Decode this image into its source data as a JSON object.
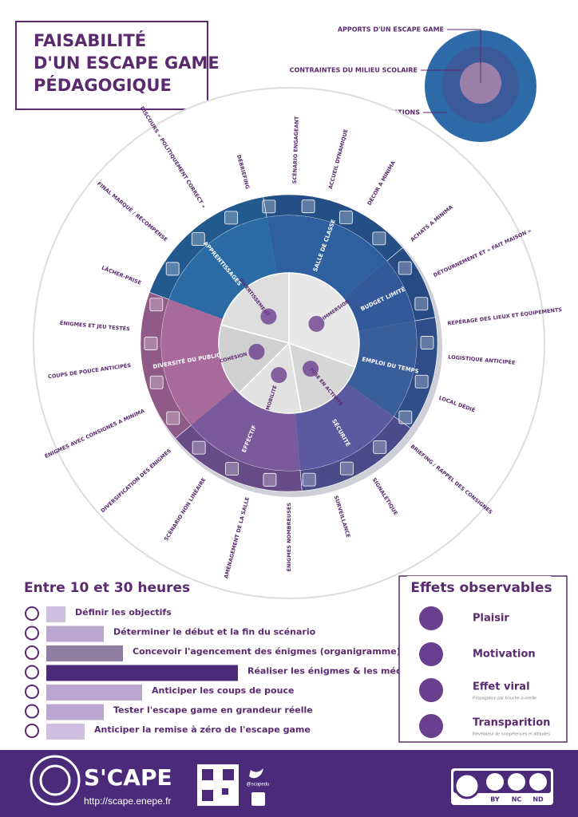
{
  "header": {
    "title": [
      "FAISABILITÉ",
      "D'UN ESCAPE GAME",
      "PÉDAGOGIQUE"
    ]
  },
  "legend": [
    "APPORTS D'UN ESCAPE GAME",
    "CONTRAINTES DU MILIEU SCOLAIRE",
    "RECOMMANDATIONS"
  ],
  "wheel": {
    "inner": [
      "DIVERTISSEMENT",
      "IMMERSION",
      "MISE EN ACTIVITÉ",
      "MOBILITÉ",
      "COHÉSION"
    ],
    "middle": [
      "APPRENTISSAGES",
      "SALLE DE CLASSE",
      "BUDGET LIMITÉ",
      "EMPLOI DU TEMPS",
      "SÉCURITÉ",
      "EFFECTIF",
      "DIVERSITÉ DU PUBLIC"
    ],
    "outer": [
      "SCÉNARIO ENGAGEANT",
      "ACCUEIL DYNAMIQUE",
      "DÉCOR A MINIMA",
      "ACHATS A MINIMA",
      "DÉTOURNEMENT ET « FAIT MAISON »",
      "REPÉRAGE DES LIEUX ET ÉQUIPEMENTS",
      "LOGISTIQUE ANTICIPÉE",
      "LOCAL DÉDIÉ",
      "BRIEFING / RAPPEL DES CONSIGNES",
      "SIGNALÉTIQUE",
      "SURVEILLANCE",
      "ÉNIGMES NOMBREUSES",
      "AMÉNAGEMENT DE LA SALLE",
      "SCÉNARIO NON LINÉAIRE",
      "DIVERSIFICATION DES ÉNIGMES",
      "ÉNIGMES AVEC CONSIGNES A MINIMA",
      "COUPS DE POUCE ANTICIPÉS",
      "ÉNIGMES ET JEU TESTÉS",
      "LÂCHER-PRISE",
      "FINAL MARQUÉ / RÉCOMPENSE",
      "DISCOURS « POLITIQUEMENT CORRECT »",
      "DÉBRIEFING"
    ]
  },
  "hours": {
    "title": "Entre 10 et 30 heures",
    "tasks": [
      {
        "label": "Définir les objectifs",
        "value": 1
      },
      {
        "label": "Déterminer le début et la fin du scénario",
        "value": 3
      },
      {
        "label": "Concevoir l'agencement des énigmes (organigramme)",
        "value": 4
      },
      {
        "label": "Réaliser les énigmes & les médias",
        "value": 10
      },
      {
        "label": "Anticiper les coups de pouce",
        "value": 5
      },
      {
        "label": "Tester l'escape game en grandeur réelle",
        "value": 3
      },
      {
        "label": "Anticiper la remise à zéro de l'escape game",
        "value": 2
      }
    ]
  },
  "effects": {
    "title": "Effets observables",
    "items": [
      {
        "label": "Plaisir"
      },
      {
        "label": "Motivation"
      },
      {
        "label": "Effet viral",
        "note": "Propagation par bouche-à-oreille"
      },
      {
        "label": "Transparition",
        "note": "Révélateur de compétences et attitudes"
      }
    ]
  },
  "footer": {
    "brand": "S'CAPE",
    "url": "http://scape.enepe.fr",
    "twitter": "@scapedu",
    "license": [
      "BY",
      "NC",
      "ND"
    ]
  }
}
